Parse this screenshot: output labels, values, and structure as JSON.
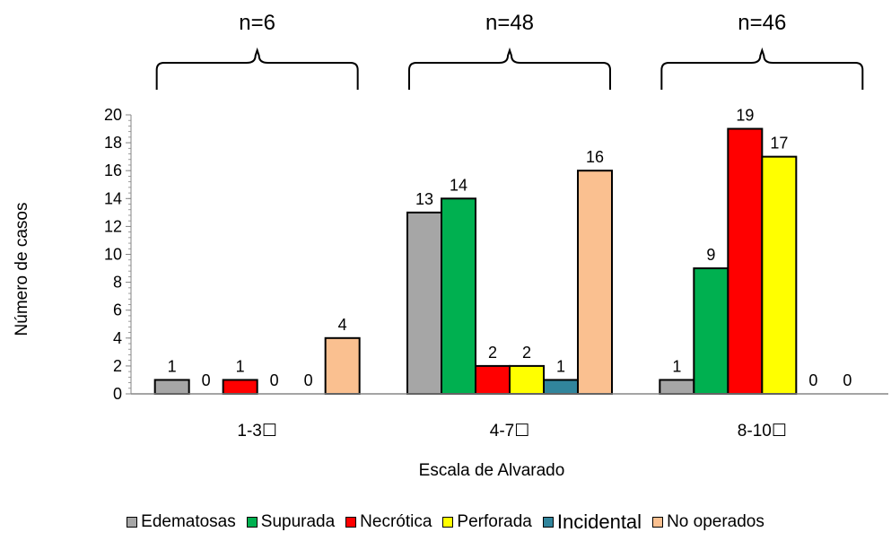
{
  "chart_data": {
    "type": "bar",
    "title": "",
    "xlabel": "Escala de Alvarado",
    "ylabel": "Número de casos",
    "ylim": [
      0,
      20
    ],
    "yticks": [
      0,
      2,
      4,
      6,
      8,
      10,
      12,
      14,
      16,
      18,
      20
    ],
    "grid": false,
    "legend_position": "bottom",
    "categories": [
      "1-3☐",
      "4-7☐",
      "8-10☐"
    ],
    "group_annotations": [
      "n=6",
      "n=48",
      "n=46"
    ],
    "series": [
      {
        "name": "Edematosas",
        "color": "#a6a6a6",
        "values": [
          1,
          13,
          1
        ]
      },
      {
        "name": "Supurada",
        "color": "#00b050",
        "values": [
          0,
          14,
          9
        ]
      },
      {
        "name": "Necrótica",
        "color": "#ff0000",
        "values": [
          1,
          2,
          19
        ]
      },
      {
        "name": "Perforada",
        "color": "#ffff00",
        "values": [
          0,
          2,
          17
        ]
      },
      {
        "name": "Incidental",
        "color": "#31859c",
        "values": [
          0,
          1,
          0
        ]
      },
      {
        "name": "No operados",
        "color": "#fac090",
        "values": [
          4,
          16,
          0
        ]
      }
    ]
  }
}
